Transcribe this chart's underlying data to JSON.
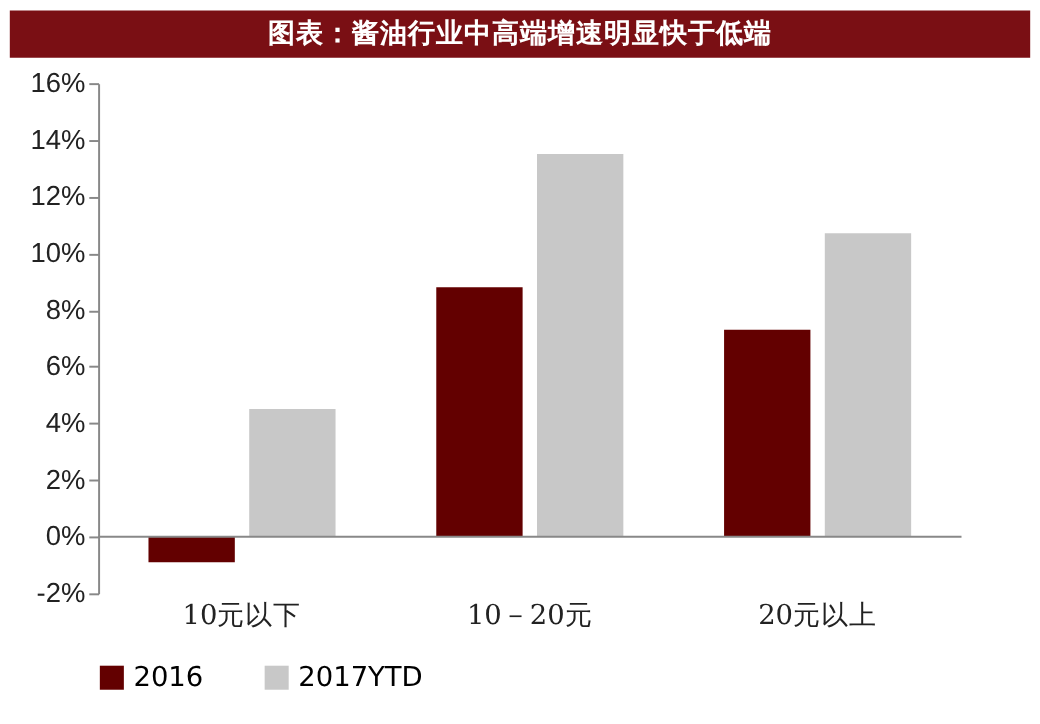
{
  "chart_data": {
    "type": "bar",
    "title": "图表：酱油行业中高端增速明显快于低端",
    "categories": [
      "10元以下",
      "10－20元",
      "20元以上"
    ],
    "series": [
      {
        "name": "2016",
        "color": "#630000",
        "values": [
          -0.9,
          8.8,
          7.3
        ]
      },
      {
        "name": "2017YTD",
        "color": "#c8c8c8",
        "values": [
          4.5,
          13.5,
          10.7
        ]
      }
    ],
    "ylim": [
      -2,
      16
    ],
    "yticks": [
      {
        "value": -2,
        "label": "-2%"
      },
      {
        "value": 0,
        "label": "0%"
      },
      {
        "value": 2,
        "label": "2%"
      },
      {
        "value": 4,
        "label": "4%"
      },
      {
        "value": 6,
        "label": "6%"
      },
      {
        "value": 8,
        "label": "8%"
      },
      {
        "value": 10,
        "label": "10%"
      },
      {
        "value": 12,
        "label": "12%"
      },
      {
        "value": 14,
        "label": "14%"
      },
      {
        "value": 16,
        "label": "16%"
      }
    ],
    "grid": false,
    "legend": "bottom"
  }
}
